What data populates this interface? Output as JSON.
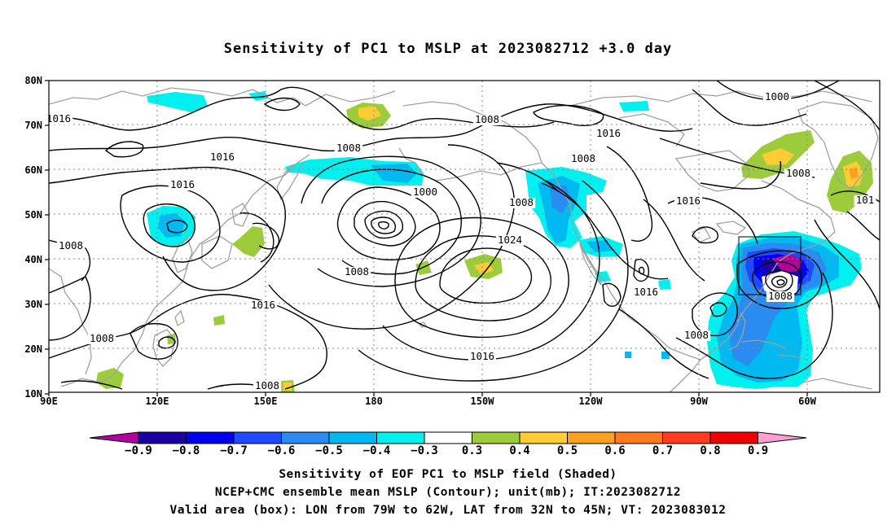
{
  "title": "Sensitivity of PC1 to MSLP at 2023082712 +3.0 day",
  "map": {
    "lat_ticks": [
      "80N",
      "70N",
      "60N",
      "50N",
      "40N",
      "30N",
      "20N",
      "10N"
    ],
    "lon_ticks": [
      "90E",
      "120E",
      "150E",
      "180",
      "150W",
      "120W",
      "90W",
      "60W"
    ],
    "contour_labels": [
      "1016",
      "1008",
      "1000",
      "1008",
      "1016",
      "1016",
      "1008",
      "1016",
      "1016",
      "1000",
      "1008",
      "1008",
      "1008",
      "1000",
      "1008",
      "1016",
      "1016",
      "1024",
      "1008",
      "1016",
      "1016",
      "1016",
      "1008",
      "1008",
      "1008",
      "1016",
      "1008",
      "101"
    ],
    "box": {
      "label": "Valid area box",
      "lon_range": "79W-62W",
      "lat_range": "32N-45N"
    }
  },
  "colorbar": {
    "labels": [
      "-0.9",
      "-0.8",
      "-0.7",
      "-0.6",
      "-0.5",
      "-0.4",
      "-0.3",
      "0.3",
      "0.4",
      "0.5",
      "0.6",
      "0.7",
      "0.8",
      "0.9"
    ],
    "colors": [
      "#1b00a3",
      "#0000f0",
      "#1e4bff",
      "#2a8cf0",
      "#00b9f0",
      "#00f0f0",
      "#ffffff",
      "#9ccc3c",
      "#ffcc33",
      "#ffa020",
      "#ff7a1e",
      "#ff3c1e",
      "#f00000"
    ],
    "end_low": "#b4009a",
    "end_high": "#ff9ed0"
  },
  "captions": [
    "Sensitivity of EOF PC1 to MSLP field (Shaded)",
    "NCEP+CMC ensemble mean MSLP (Contour); unit(mb); IT:2023082712",
    "Valid area (box): LON from 79W to 62W, LAT from 32N to 45N; VT: 2023083012"
  ]
}
